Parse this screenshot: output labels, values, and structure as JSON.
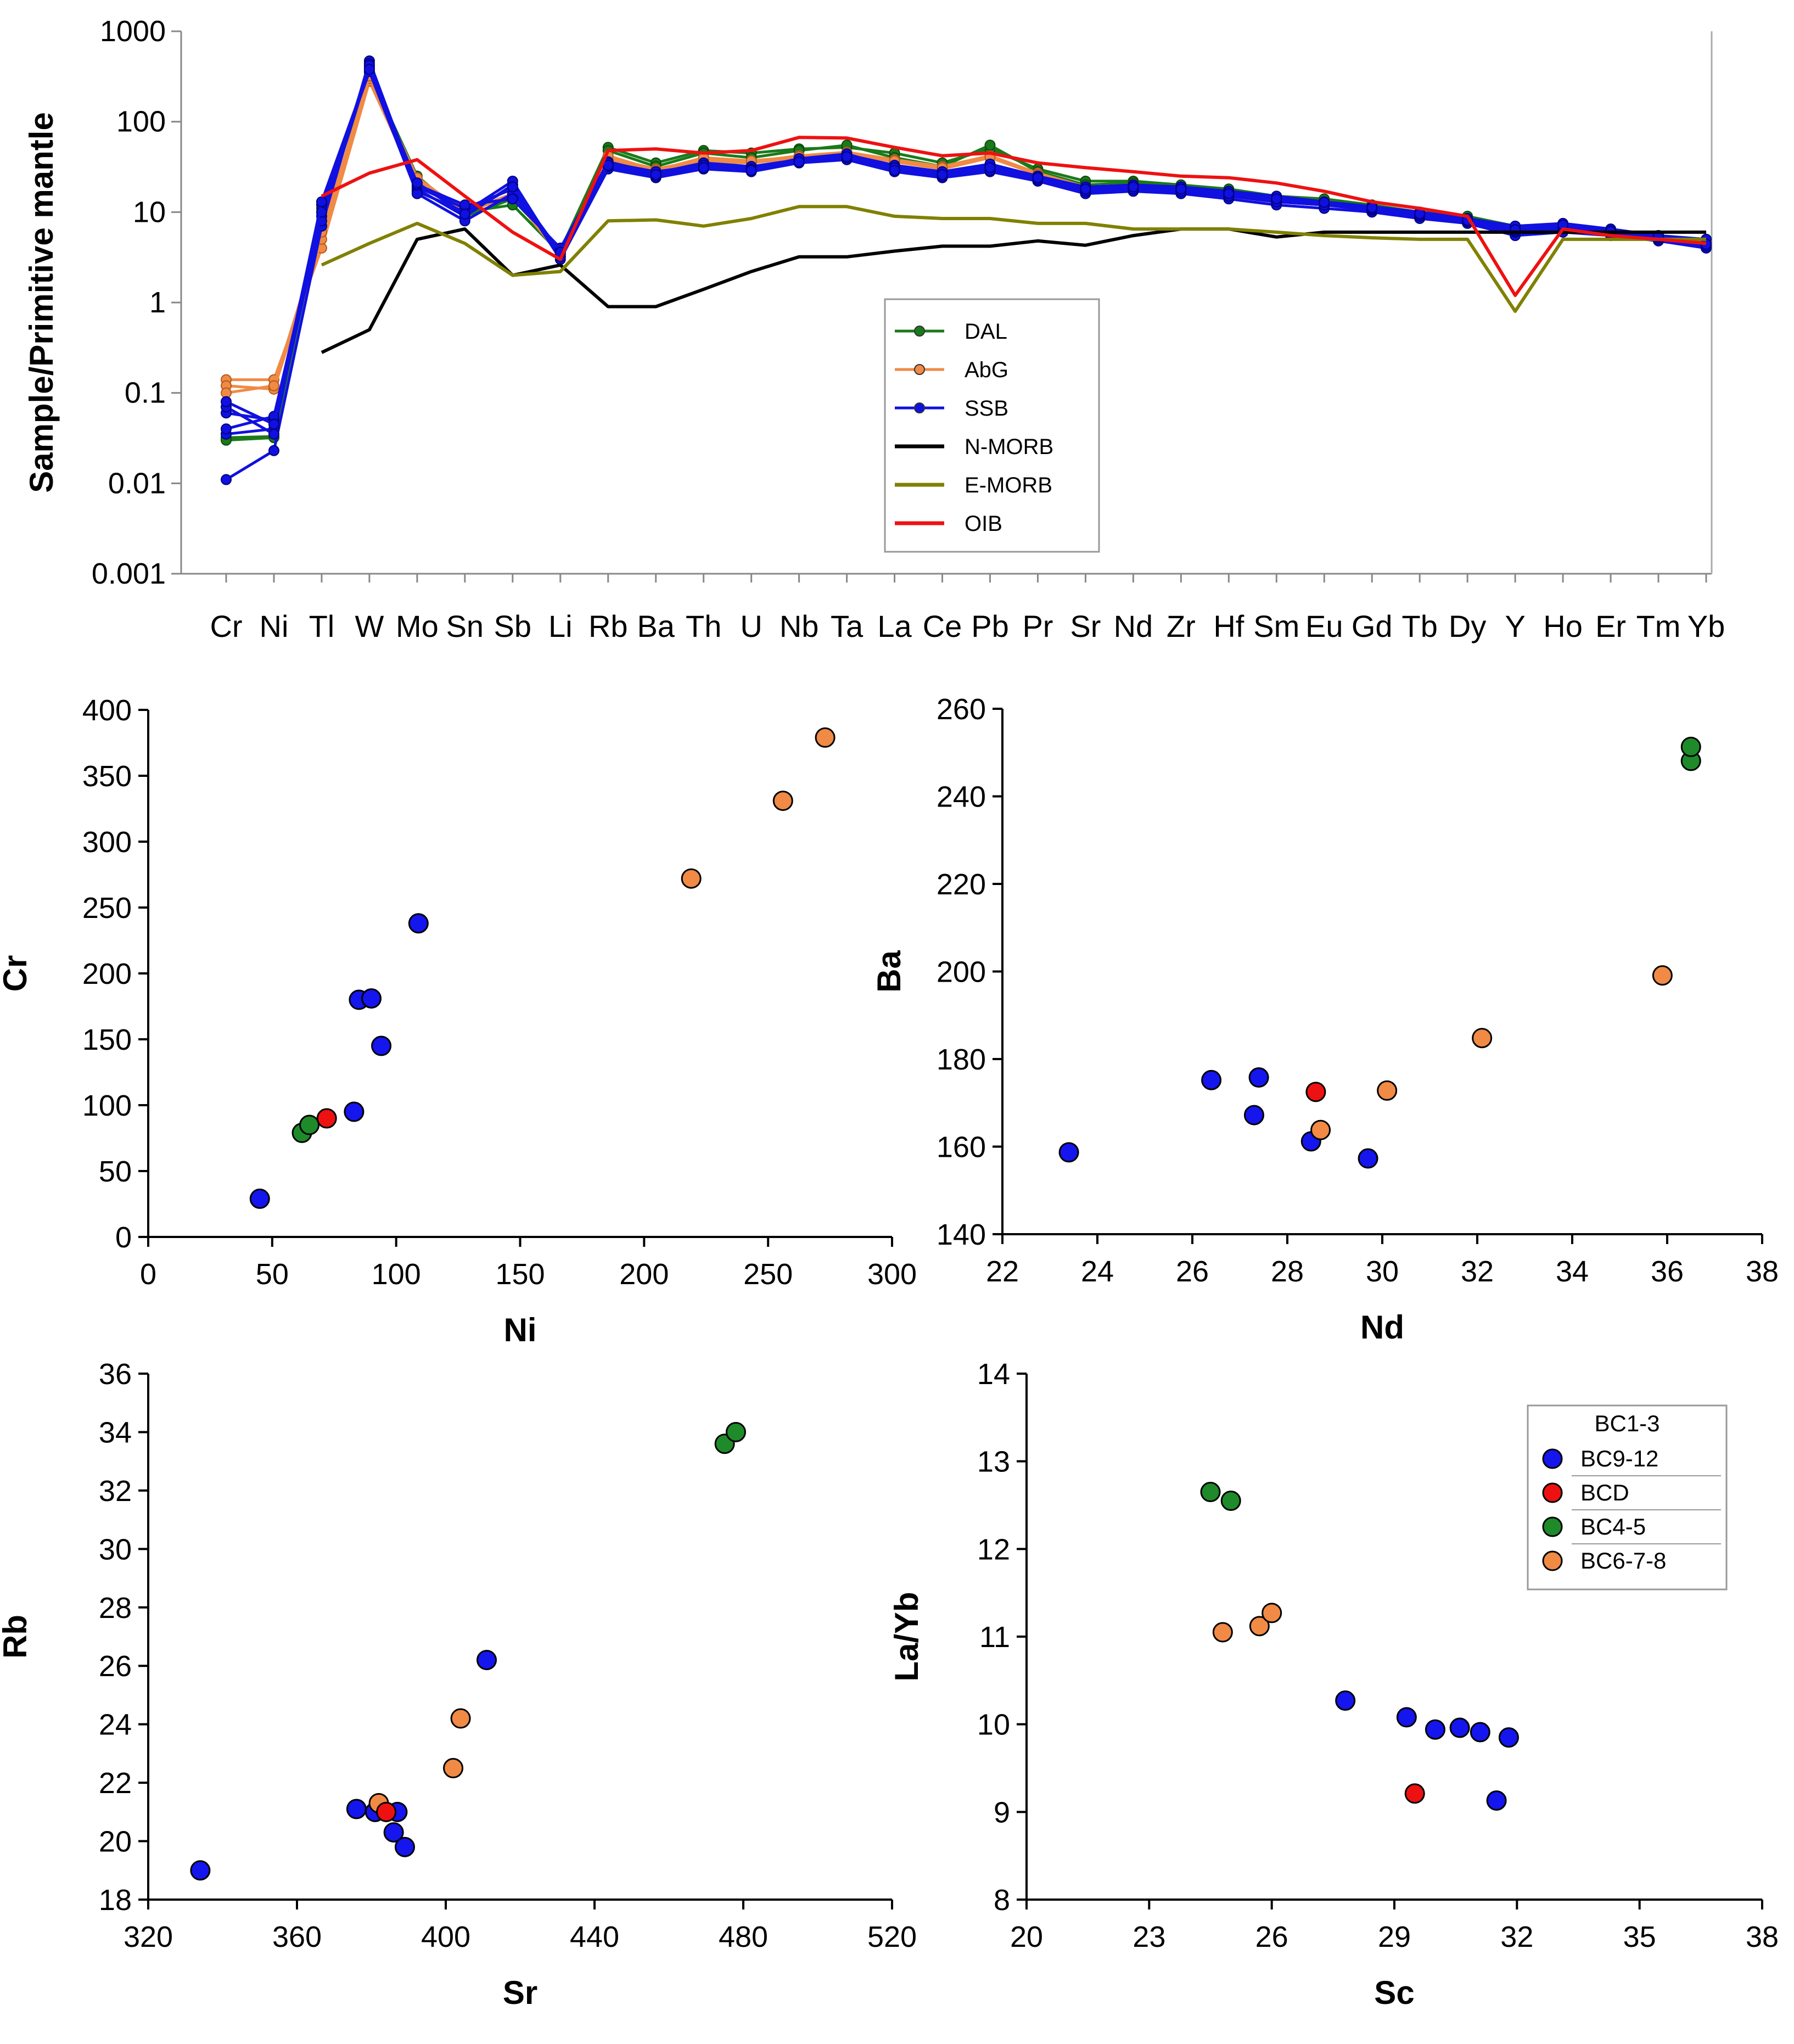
{
  "chart_data": [
    {
      "type": "line",
      "title": "",
      "xlabel": "",
      "ylabel": "Sample/Primitive mantle",
      "yscale": "log",
      "ylim": [
        0.001,
        1000
      ],
      "ytick_labels": [
        "0.001",
        "0.01",
        "0.1",
        "1",
        "10",
        "100",
        "1000"
      ],
      "categories": [
        "Cr",
        "Ni",
        "Tl",
        "W",
        "Mo",
        "Sn",
        "Sb",
        "Li",
        "Rb",
        "Ba",
        "Th",
        "U",
        "Nb",
        "Ta",
        "La",
        "Ce",
        "Pb",
        "Pr",
        "Sr",
        "Nd",
        "Zr",
        "Hf",
        "Sm",
        "Eu",
        "Gd",
        "Tb",
        "Dy",
        "Y",
        "Ho",
        "Er",
        "Tm",
        "Yb"
      ],
      "legend_position": "center-right",
      "series": [
        {
          "name": "DAL",
          "group": "DAL",
          "color": "#1a7a1a",
          "marker": true,
          "values": [
            0.032,
            0.033,
            11,
            350,
            25,
            9,
            14,
            3.8,
            52,
            35,
            48,
            45,
            50,
            52,
            45,
            35,
            50,
            30,
            22,
            22,
            20,
            18,
            15,
            14,
            12,
            10,
            9,
            7,
            7,
            6,
            5.5,
            4.5
          ]
        },
        {
          "name": "DAL",
          "group": "DAL",
          "color": "#1a7a1a",
          "marker": true,
          "values": [
            0.03,
            0.032,
            10,
            320,
            22,
            10,
            12,
            3.5,
            48,
            32,
            45,
            40,
            48,
            55,
            40,
            32,
            55,
            28,
            20,
            21,
            19,
            17,
            14,
            13,
            11,
            9.5,
            8.5,
            6.5,
            7,
            6,
            5.5,
            5
          ]
        },
        {
          "name": "AbG",
          "group": "AbG",
          "color": "#f08a45",
          "marker": true,
          "values": [
            0.14,
            0.14,
            4,
            280,
            20,
            10,
            16,
            3.2,
            40,
            30,
            38,
            36,
            42,
            46,
            38,
            32,
            42,
            27,
            19,
            20,
            18,
            16,
            14,
            13,
            11,
            9.5,
            8,
            6.5,
            6.5,
            5.8,
            5,
            4.8
          ]
        },
        {
          "name": "AbG",
          "group": "AbG",
          "color": "#f08a45",
          "marker": true,
          "values": [
            0.12,
            0.11,
            5,
            300,
            22,
            11,
            18,
            3.4,
            38,
            28,
            36,
            35,
            40,
            44,
            36,
            30,
            40,
            26,
            18,
            19,
            17,
            15,
            13,
            12,
            10.5,
            9,
            8,
            6,
            6.2,
            5.5,
            5,
            4.6
          ]
        },
        {
          "name": "AbG",
          "group": "AbG",
          "color": "#f08a45",
          "marker": true,
          "values": [
            0.1,
            0.12,
            6,
            320,
            24,
            10,
            15,
            3.3,
            42,
            29,
            40,
            37,
            41,
            45,
            37,
            31,
            41,
            26,
            19,
            20,
            18,
            16,
            14,
            12.5,
            11,
            9.2,
            8.2,
            6.2,
            6.4,
            5.6,
            5.1,
            4.7
          ]
        },
        {
          "name": "SSB",
          "group": "SSB",
          "color": "#1010e0",
          "marker": true,
          "values": [
            0.011,
            0.023,
            7,
            470,
            18,
            9,
            20,
            3.0,
            30,
            24,
            30,
            28,
            35,
            38,
            28,
            24,
            28,
            22,
            16,
            17,
            16,
            14,
            12,
            11,
            10,
            8.5,
            7.5,
            5.5,
            6,
            5.5,
            4.8,
            4
          ]
        },
        {
          "name": "SSB",
          "group": "SSB",
          "color": "#1010e0",
          "marker": true,
          "values": [
            0.035,
            0.04,
            9,
            440,
            17,
            10,
            22,
            3.2,
            32,
            25,
            32,
            30,
            36,
            40,
            30,
            26,
            30,
            23,
            17,
            18,
            17,
            15,
            13,
            12,
            10.5,
            9,
            7.8,
            6,
            6.5,
            5.8,
            5,
            4.3
          ]
        },
        {
          "name": "SSB",
          "group": "SSB",
          "color": "#1010e0",
          "marker": true,
          "values": [
            0.06,
            0.05,
            8,
            400,
            19,
            11,
            18,
            3.5,
            34,
            26,
            34,
            31,
            37,
            42,
            32,
            27,
            32,
            24,
            18,
            19,
            18,
            16,
            14,
            12.5,
            11,
            9.5,
            8,
            6.5,
            7,
            6,
            5.2,
            4.5
          ]
        },
        {
          "name": "SSB",
          "group": "SSB",
          "color": "#1010e0",
          "marker": true,
          "values": [
            0.07,
            0.035,
            12,
            360,
            16,
            8,
            16,
            3.8,
            36,
            27,
            35,
            32,
            38,
            43,
            33,
            28,
            34,
            25,
            19,
            20,
            19,
            17,
            15,
            13,
            11.5,
            10,
            8.5,
            7,
            7.5,
            6.5,
            5.5,
            5
          ]
        },
        {
          "name": "SSB",
          "group": "SSB",
          "color": "#1010e0",
          "marker": true,
          "values": [
            0.04,
            0.055,
            10,
            420,
            20,
            12,
            14,
            4.0,
            35,
            28,
            33,
            30,
            39,
            44,
            31,
            25,
            29,
            23,
            17,
            18,
            17,
            15,
            13,
            12,
            10.8,
            9.2,
            7.9,
            6.2,
            6.8,
            6.2,
            5.3,
            4.2
          ]
        },
        {
          "name": "SSB",
          "group": "SSB",
          "color": "#1010e0",
          "marker": true,
          "values": [
            0.08,
            0.045,
            13,
            380,
            21,
            9.5,
            19,
            3.6,
            33,
            26,
            31,
            29,
            36,
            41,
            29,
            26,
            31,
            24,
            18,
            19,
            18,
            16,
            14,
            12.8,
            11.2,
            9.6,
            8.1,
            6.4,
            7.2,
            6.1,
            5.4,
            4.4
          ]
        },
        {
          "name": "N-MORB",
          "group": "N-MORB",
          "color": "#000000",
          "marker": false,
          "values": [
            null,
            null,
            0.28,
            0.5,
            5,
            6.5,
            2,
            2.6,
            0.9,
            0.9,
            1.4,
            2.2,
            3.2,
            3.2,
            3.7,
            4.2,
            4.2,
            4.8,
            4.3,
            5.5,
            6.5,
            6.5,
            5.3,
            6,
            6,
            6,
            6,
            6,
            6,
            6,
            6,
            6
          ]
        },
        {
          "name": "E-MORB",
          "group": "E-MORB",
          "color": "#808000",
          "marker": false,
          "values": [
            null,
            null,
            2.6,
            4.5,
            7.5,
            4.5,
            2,
            2.2,
            8,
            8.2,
            7,
            8.5,
            11.5,
            11.5,
            9,
            8.5,
            8.5,
            7.5,
            7.5,
            6.5,
            6.5,
            6.5,
            6,
            5.5,
            5.2,
            5,
            5,
            0.8,
            5,
            5,
            5,
            5
          ]
        },
        {
          "name": "OIB",
          "group": "OIB",
          "color": "#ee1111",
          "marker": false,
          "values": [
            null,
            null,
            15,
            27,
            38,
            15,
            6,
            3,
            48,
            50,
            45,
            48,
            67,
            66,
            52,
            42,
            45,
            35,
            31,
            28,
            25,
            24,
            21,
            17,
            13,
            11,
            9,
            1.2,
            6.5,
            5.5,
            5,
            4.5
          ]
        }
      ]
    },
    {
      "type": "scatter",
      "xlabel": "Ni",
      "ylabel": "Cr",
      "xlim": [
        0,
        300
      ],
      "ylim": [
        0,
        400
      ],
      "xtick_labels": [
        "0",
        "50",
        "100",
        "150",
        "200",
        "250",
        "300"
      ],
      "ytick_labels": [
        "0",
        "50",
        "100",
        "150",
        "200",
        "250",
        "300",
        "350",
        "400"
      ],
      "points": [
        {
          "x": 45,
          "y": 29,
          "group": "BC9-12"
        },
        {
          "x": 83,
          "y": 95,
          "group": "BC9-12"
        },
        {
          "x": 85,
          "y": 180,
          "group": "BC9-12"
        },
        {
          "x": 90,
          "y": 181,
          "group": "BC9-12"
        },
        {
          "x": 94,
          "y": 145,
          "group": "BC9-12"
        },
        {
          "x": 109,
          "y": 238,
          "group": "BC9-12"
        },
        {
          "x": 62,
          "y": 79,
          "group": "BC4-5"
        },
        {
          "x": 65,
          "y": 85,
          "group": "BC4-5"
        },
        {
          "x": 72,
          "y": 90,
          "group": "BCD"
        },
        {
          "x": 219,
          "y": 272,
          "group": "BC6-7-8"
        },
        {
          "x": 256,
          "y": 331,
          "group": "BC6-7-8"
        },
        {
          "x": 273,
          "y": 379,
          "group": "BC6-7-8"
        }
      ]
    },
    {
      "type": "scatter",
      "xlabel": "Nd",
      "ylabel": "Ba",
      "xlim": [
        22,
        38
      ],
      "ylim": [
        140,
        260
      ],
      "xtick_labels": [
        "22",
        "24",
        "26",
        "28",
        "30",
        "32",
        "34",
        "36",
        "38"
      ],
      "ytick_labels": [
        "140",
        "160",
        "180",
        "200",
        "220",
        "240",
        "260"
      ],
      "points": [
        {
          "x": 23.4,
          "y": 158.7,
          "group": "BC9-12"
        },
        {
          "x": 26.4,
          "y": 175.2,
          "group": "BC9-12"
        },
        {
          "x": 27.3,
          "y": 167.2,
          "group": "BC9-12"
        },
        {
          "x": 27.4,
          "y": 175.8,
          "group": "BC9-12"
        },
        {
          "x": 28.5,
          "y": 161.2,
          "group": "BC9-12"
        },
        {
          "x": 29.7,
          "y": 157.3,
          "group": "BC9-12"
        },
        {
          "x": 28.6,
          "y": 172.5,
          "group": "BCD"
        },
        {
          "x": 28.7,
          "y": 163.8,
          "group": "BC6-7-8"
        },
        {
          "x": 30.1,
          "y": 172.8,
          "group": "BC6-7-8"
        },
        {
          "x": 32.1,
          "y": 184.8,
          "group": "BC6-7-8"
        },
        {
          "x": 35.9,
          "y": 199.1,
          "group": "BC6-7-8"
        },
        {
          "x": 36.5,
          "y": 248.1,
          "group": "BC4-5"
        },
        {
          "x": 36.5,
          "y": 251.3,
          "group": "BC4-5"
        }
      ]
    },
    {
      "type": "scatter",
      "xlabel": "Sr",
      "ylabel": "Rb",
      "xlim": [
        320,
        520
      ],
      "ylim": [
        18,
        36
      ],
      "xtick_labels": [
        "320",
        "360",
        "400",
        "440",
        "480",
        "520"
      ],
      "ytick_labels": [
        "18",
        "20",
        "22",
        "24",
        "26",
        "28",
        "30",
        "32",
        "34",
        "36"
      ],
      "points": [
        {
          "x": 334,
          "y": 19.0,
          "group": "BC9-12"
        },
        {
          "x": 376,
          "y": 21.1,
          "group": "BC9-12"
        },
        {
          "x": 381,
          "y": 21.0,
          "group": "BC9-12"
        },
        {
          "x": 387,
          "y": 21.0,
          "group": "BC9-12"
        },
        {
          "x": 386,
          "y": 20.3,
          "group": "BC9-12"
        },
        {
          "x": 389,
          "y": 19.8,
          "group": "BC9-12"
        },
        {
          "x": 411,
          "y": 26.2,
          "group": "BC9-12"
        },
        {
          "x": 382,
          "y": 21.3,
          "group": "BC6-7-8"
        },
        {
          "x": 402,
          "y": 22.5,
          "group": "BC6-7-8"
        },
        {
          "x": 404,
          "y": 24.2,
          "group": "BC6-7-8"
        },
        {
          "x": 384,
          "y": 21.0,
          "group": "BCD"
        },
        {
          "x": 475,
          "y": 33.6,
          "group": "BC4-5"
        },
        {
          "x": 478,
          "y": 34.0,
          "group": "BC4-5"
        }
      ]
    },
    {
      "type": "scatter",
      "xlabel": "Sc",
      "ylabel": "La/Yb",
      "xlim": [
        20,
        38
      ],
      "ylim": [
        8,
        14
      ],
      "xtick_labels": [
        "20",
        "23",
        "26",
        "29",
        "32",
        "35",
        "38"
      ],
      "ytick_labels": [
        "8",
        "9",
        "10",
        "11",
        "12",
        "13",
        "14"
      ],
      "legend_position": "top-right",
      "legend": [
        "BC1-3",
        "BC9-12",
        "BCD",
        "BC4-5",
        "BC6-7-8"
      ],
      "points": [
        {
          "x": 24.5,
          "y": 12.65,
          "group": "BC4-5"
        },
        {
          "x": 25.0,
          "y": 12.55,
          "group": "BC4-5"
        },
        {
          "x": 24.8,
          "y": 11.05,
          "group": "BC6-7-8"
        },
        {
          "x": 25.7,
          "y": 11.12,
          "group": "BC6-7-8"
        },
        {
          "x": 26.0,
          "y": 11.27,
          "group": "BC6-7-8"
        },
        {
          "x": 27.8,
          "y": 10.27,
          "group": "BC9-12"
        },
        {
          "x": 29.3,
          "y": 10.08,
          "group": "BC9-12"
        },
        {
          "x": 30.0,
          "y": 9.94,
          "group": "BC9-12"
        },
        {
          "x": 30.6,
          "y": 9.96,
          "group": "BC9-12"
        },
        {
          "x": 31.1,
          "y": 9.91,
          "group": "BC9-12"
        },
        {
          "x": 31.8,
          "y": 9.85,
          "group": "BC9-12"
        },
        {
          "x": 31.5,
          "y": 9.13,
          "group": "BC9-12"
        },
        {
          "x": 29.5,
          "y": 9.21,
          "group": "BCD"
        }
      ]
    }
  ],
  "colors": {
    "BC9-12": "#1515ee",
    "BCD": "#ee1111",
    "BC4-5": "#1e8a2a",
    "BC6-7-8": "#f08a45",
    "BC1-3": "#ffffff"
  }
}
